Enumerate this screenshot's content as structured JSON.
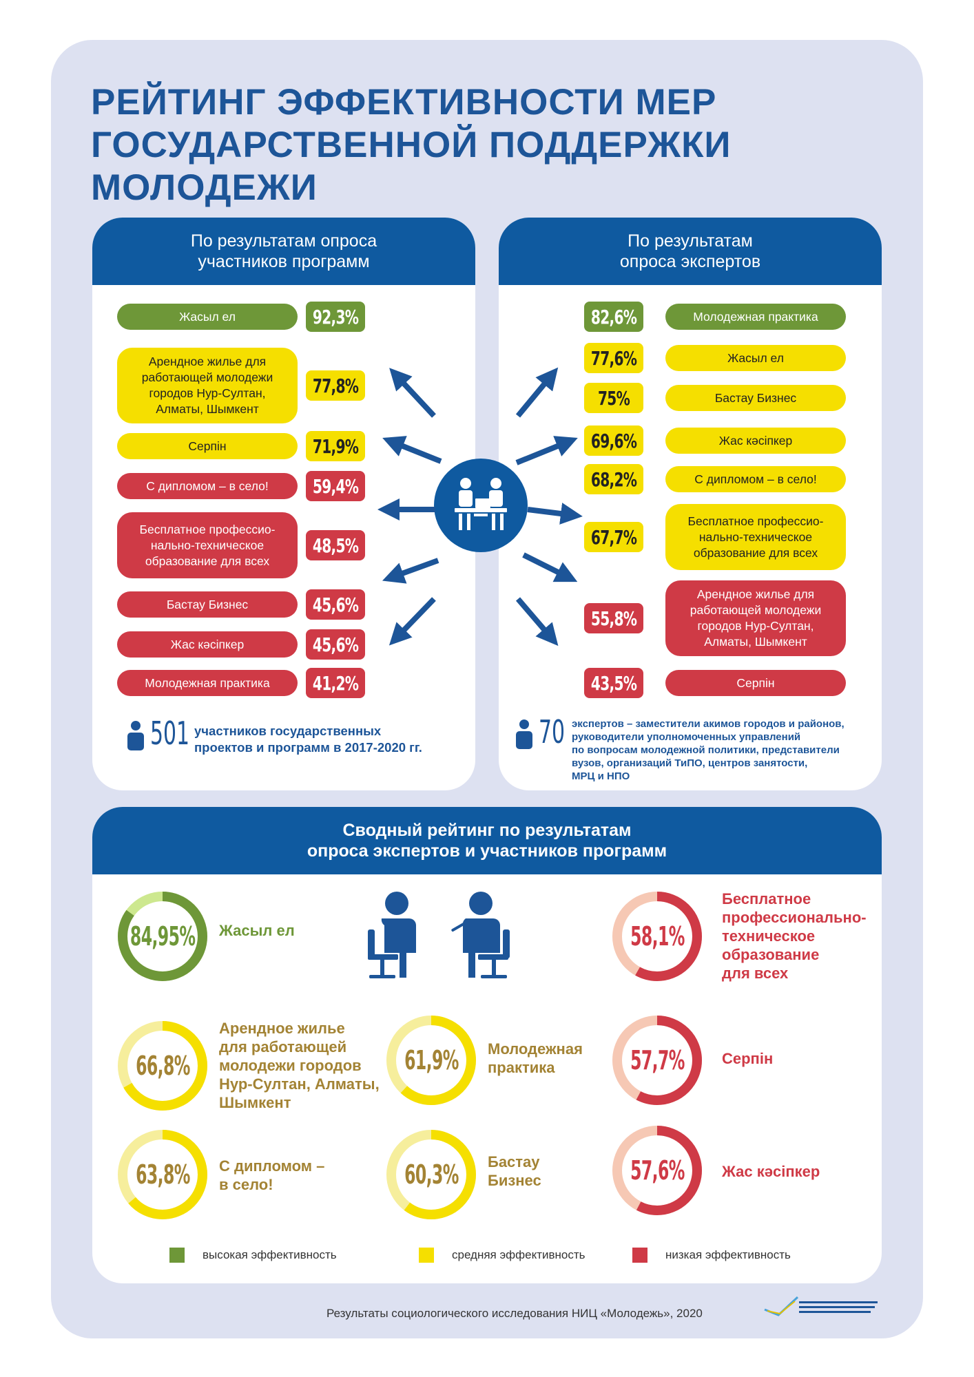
{
  "title": [
    "РЕЙТИНГ ЭФФЕКТИВНОСТИ МЕР",
    "ГОСУДАРСТВЕННОЙ ПОДДЕРЖКИ",
    "МОЛОДЕЖИ"
  ],
  "left_panel": {
    "header": [
      "По результатам опроса",
      "участников программ"
    ],
    "count": "501",
    "note": [
      "участников государственных",
      "проектов и программ в 2017-2020 гг."
    ]
  },
  "right_panel": {
    "header": [
      "По результатам",
      "опроса экспертов"
    ],
    "count": "70",
    "note": [
      "экспертов – заместители акимов городов и районов,",
      "руководители уполномоченных управлений",
      "по вопросам молодежной политики, представители",
      "вузов, организаций ТиПО, центров занятости,",
      "МРЦ и НПО"
    ]
  },
  "summary": {
    "header": [
      "Сводный рейтинг по результатам",
      "опроса экспертов и участников программ"
    ]
  },
  "legend": [
    {
      "label": "высокая эффективность",
      "color": "#6e9738"
    },
    {
      "label": "средняя эффективность",
      "color": "#f5df00"
    },
    {
      "label": "низкая эффективность",
      "color": "#cf3a46"
    }
  ],
  "footer": "Результаты социологического исследования НИЦ «Молодежь», 2020",
  "colors": {
    "blue": "#0f5aa0",
    "green": "#6e9738",
    "yellow": "#f5df00",
    "red": "#cf3a46"
  },
  "chart_data": [
    {
      "type": "bar",
      "title": "По результатам опроса участников программ",
      "categories": [
        "Жасыл ел",
        "Арендное жилье для работающей молодежи городов Нур-Султан, Алматы, Шымкент",
        "Серпін",
        "С дипломом – в село!",
        "Бесплатное профессио-нально-техническое образование для всех",
        "Бастау Бизнес",
        "Жас кәсіпкер",
        "Молодежная практика"
      ],
      "category_lines": [
        [
          "Жасыл ел"
        ],
        [
          "Арендное жилье для",
          "работающей молодежи",
          "городов Нур-Султан,",
          "Алматы, Шымкент"
        ],
        [
          "Серпін"
        ],
        [
          "С дипломом – в село!"
        ],
        [
          "Бесплатное профессио-",
          "нально-техническое",
          "образование для всех"
        ],
        [
          "Бастау Бизнес"
        ],
        [
          "Жас кәсіпкер"
        ],
        [
          "Молодежная практика"
        ]
      ],
      "values": [
        92.3,
        77.8,
        71.9,
        59.4,
        48.5,
        45.6,
        45.6,
        41.2
      ],
      "labels": [
        "92,3%",
        "77,8%",
        "71,9%",
        "59,4%",
        "48,5%",
        "45,6%",
        "45,6%",
        "41,2%"
      ],
      "levels": [
        "green",
        "yellow",
        "yellow",
        "red",
        "red",
        "red",
        "red",
        "red"
      ]
    },
    {
      "type": "bar",
      "title": "По результатам опроса экспертов",
      "categories": [
        "Молодежная практика",
        "Жасыл ел",
        "Бастау Бизнес",
        "Жас кәсіпкер",
        "С дипломом – в село!",
        "Бесплатное профессио-нально-техническое образование для всех",
        "Арендное жилье для работающей молодежи городов Нур-Султан, Алматы, Шымкент",
        "Серпін"
      ],
      "category_lines": [
        [
          "Молодежная практика"
        ],
        [
          "Жасыл ел"
        ],
        [
          "Бастау Бизнес"
        ],
        [
          "Жас кәсіпкер"
        ],
        [
          "С дипломом – в село!"
        ],
        [
          "Бесплатное профессио-",
          "нально-техническое",
          "образование для всех"
        ],
        [
          "Арендное жилье для",
          "работающей молодежи",
          "городов Нур-Султан,",
          "Алматы, Шымкент"
        ],
        [
          "Серпін"
        ]
      ],
      "values": [
        82.6,
        77.6,
        75,
        69.6,
        68.2,
        67.7,
        55.8,
        43.5
      ],
      "labels": [
        "82,6%",
        "77,6%",
        "75%",
        "69,6%",
        "68,2%",
        "67,7%",
        "55,8%",
        "43,5%"
      ],
      "levels": [
        "green",
        "yellow",
        "yellow",
        "yellow",
        "yellow",
        "yellow",
        "red",
        "red"
      ]
    },
    {
      "type": "pie",
      "title": "Сводный рейтинг по результатам опроса экспертов и участников программ",
      "categories": [
        "Жасыл ел",
        "Арендное жилье для работающей молодежи городов Нур-Султан, Алматы, Шымкент",
        "С дипломом – в село!",
        "Молодежная практика",
        "Бастау Бизнес",
        "Бесплатное профессионально-техническое образование для всех",
        "Серпін",
        "Жас кәсіпкер"
      ],
      "category_lines": [
        [
          "Жасыл ел"
        ],
        [
          "Арендное жилье",
          "для работающей",
          "молодежи городов",
          "Нур-Султан, Алматы,",
          "Шымкент"
        ],
        [
          "С дипломом –",
          "в село!"
        ],
        [
          "Молодежная",
          "практика"
        ],
        [
          "Бастау",
          "Бизнес"
        ],
        [
          "Бесплатное",
          "профессионально-",
          "техническое",
          "образование",
          "для всех"
        ],
        [
          "Серпін"
        ],
        [
          "Жас кәсіпкер"
        ]
      ],
      "values": [
        84.95,
        66.8,
        63.8,
        61.9,
        60.3,
        58.1,
        57.7,
        57.6
      ],
      "labels": [
        "84,95%",
        "66,8%",
        "63,8%",
        "61,9%",
        "60,3%",
        "58,1%",
        "57,7%",
        "57,6%"
      ],
      "levels": [
        "green",
        "yellow",
        "yellow",
        "yellow",
        "yellow",
        "red",
        "red",
        "red"
      ]
    }
  ]
}
